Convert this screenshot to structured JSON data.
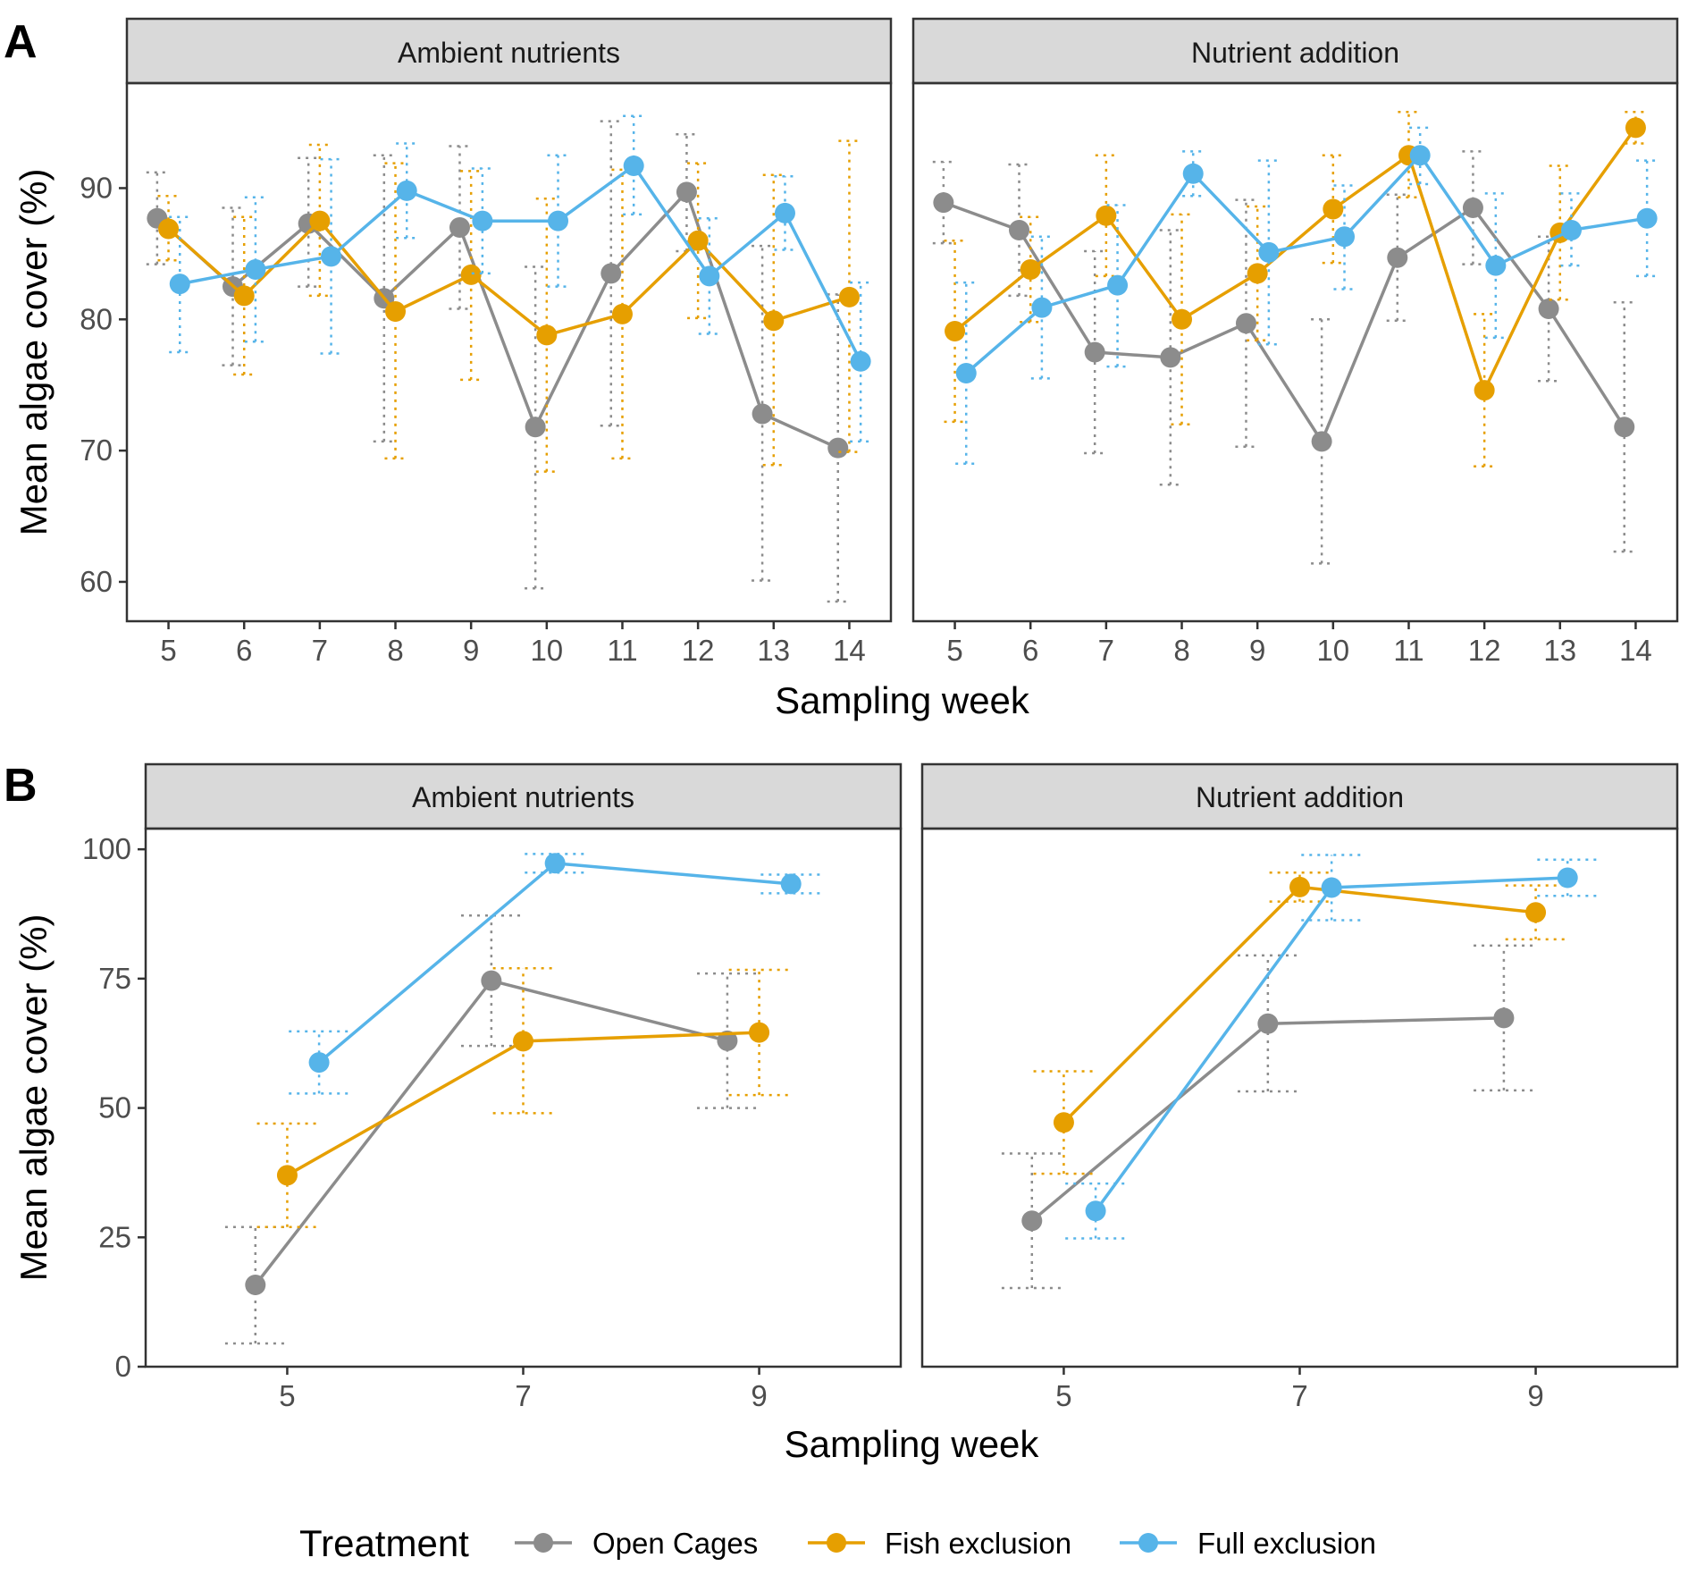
{
  "colors": {
    "Open Cages": "#8c8c8c",
    "Fish exclusion": "#e69f00",
    "Full exclusion": "#56b4e9",
    "strip_fill": "#d9d9d9",
    "panel_border": "#333333"
  },
  "legend": {
    "title": "Treatment",
    "placement": "bottom",
    "items": [
      "Open Cages",
      "Fish exclusion",
      "Full exclusion"
    ]
  },
  "chart_data": [
    {
      "tag": "A",
      "type": "line",
      "xlabel": "Sampling week",
      "ylabel": "Mean algae cover (%)",
      "x": [
        5,
        6,
        7,
        8,
        9,
        10,
        11,
        12,
        13,
        14
      ],
      "xlim": [
        4.45,
        14.55
      ],
      "ylim": [
        57,
        98
      ],
      "yticks": [
        60,
        70,
        80,
        90
      ],
      "dodge": 0.15,
      "grid": false,
      "error_bars": "dotted",
      "facets": [
        {
          "label": "Ambient nutrients",
          "series": [
            {
              "name": "Open Cages",
              "values": [
                87.7,
                82.5,
                87.3,
                81.6,
                87.0,
                71.8,
                83.5,
                89.7,
                72.8,
                70.2
              ],
              "lower": [
                84.2,
                76.5,
                82.5,
                70.7,
                80.8,
                59.5,
                71.9,
                85.2,
                60.1,
                58.5
              ],
              "upper": [
                91.2,
                88.5,
                92.3,
                92.5,
                93.2,
                84.0,
                95.1,
                94.1,
                85.6,
                81.9
              ]
            },
            {
              "name": "Fish exclusion",
              "values": [
                86.9,
                81.8,
                87.5,
                80.6,
                83.4,
                78.8,
                80.4,
                86.0,
                79.9,
                81.7
              ],
              "lower": [
                84.5,
                75.8,
                81.8,
                69.4,
                75.4,
                68.4,
                69.4,
                80.1,
                68.9,
                69.9
              ],
              "upper": [
                89.4,
                87.8,
                93.3,
                91.9,
                91.3,
                89.2,
                91.4,
                91.9,
                91.0,
                93.6
              ]
            },
            {
              "name": "Full exclusion",
              "values": [
                82.7,
                83.8,
                84.8,
                89.8,
                87.5,
                87.5,
                91.7,
                83.3,
                88.1,
                76.8
              ],
              "lower": [
                77.5,
                78.3,
                77.4,
                86.2,
                83.5,
                82.5,
                88.0,
                78.9,
                85.3,
                70.7
              ],
              "upper": [
                87.8,
                89.3,
                92.2,
                93.4,
                91.5,
                92.5,
                95.5,
                87.7,
                90.9,
                82.8
              ]
            }
          ]
        },
        {
          "label": "Nutrient addition",
          "series": [
            {
              "name": "Open Cages",
              "values": [
                88.9,
                86.8,
                77.5,
                77.1,
                79.7,
                70.7,
                84.7,
                88.5,
                80.8,
                71.8
              ],
              "lower": [
                85.8,
                81.8,
                69.8,
                67.4,
                70.3,
                61.4,
                79.9,
                84.2,
                75.3,
                62.3
              ],
              "upper": [
                92.0,
                91.8,
                85.2,
                86.8,
                89.1,
                80.0,
                89.5,
                92.8,
                86.3,
                81.3
              ]
            },
            {
              "name": "Fish exclusion",
              "values": [
                79.1,
                83.8,
                87.9,
                80.0,
                83.5,
                88.4,
                92.5,
                74.6,
                86.6,
                94.6
              ],
              "lower": [
                72.2,
                79.8,
                83.3,
                72.0,
                78.4,
                84.3,
                89.3,
                68.8,
                81.5,
                93.4
              ],
              "upper": [
                86.0,
                87.8,
                92.5,
                88.0,
                88.6,
                92.5,
                95.8,
                80.4,
                91.7,
                95.8
              ]
            },
            {
              "name": "Full exclusion",
              "values": [
                75.9,
                80.9,
                82.6,
                91.1,
                85.1,
                86.3,
                92.5,
                84.1,
                86.8,
                87.7
              ],
              "lower": [
                69.0,
                75.5,
                76.4,
                89.4,
                78.1,
                82.3,
                90.3,
                78.6,
                84.1,
                83.3
              ],
              "upper": [
                82.8,
                86.3,
                88.7,
                92.8,
                92.1,
                90.2,
                94.6,
                89.6,
                89.6,
                92.1
              ]
            }
          ]
        }
      ]
    },
    {
      "tag": "B",
      "type": "line",
      "xlabel": "Sampling week",
      "ylabel": "Mean algae cover (%)",
      "x": [
        5,
        7,
        9
      ],
      "xlim": [
        3.8,
        10.2
      ],
      "ylim": [
        0,
        104
      ],
      "yticks": [
        0,
        25,
        50,
        75,
        100
      ],
      "dodge": 0.27,
      "grid": false,
      "error_bars": "dotted",
      "facets": [
        {
          "label": "Ambient nutrients",
          "series": [
            {
              "name": "Open Cages",
              "values": [
                15.8,
                74.6,
                63.0
              ],
              "lower": [
                4.5,
                62.0,
                50.0
              ],
              "upper": [
                27.0,
                87.2,
                76.0
              ]
            },
            {
              "name": "Fish exclusion",
              "values": [
                37.0,
                62.9,
                64.6
              ],
              "lower": [
                27.0,
                49.0,
                52.5
              ],
              "upper": [
                47.0,
                77.0,
                76.7
              ]
            },
            {
              "name": "Full exclusion",
              "values": [
                58.8,
                97.3,
                93.3
              ],
              "lower": [
                52.8,
                95.5,
                91.5
              ],
              "upper": [
                64.8,
                99.1,
                95.1
              ]
            }
          ]
        },
        {
          "label": "Nutrient addition",
          "series": [
            {
              "name": "Open Cages",
              "values": [
                28.2,
                66.3,
                67.4
              ],
              "lower": [
                15.2,
                53.2,
                53.4
              ],
              "upper": [
                41.2,
                79.5,
                81.4
              ]
            },
            {
              "name": "Fish exclusion",
              "values": [
                47.2,
                92.7,
                87.8
              ],
              "lower": [
                37.3,
                89.9,
                82.6
              ],
              "upper": [
                57.1,
                95.5,
                93.0
              ]
            },
            {
              "name": "Full exclusion",
              "values": [
                30.1,
                92.6,
                94.5
              ],
              "lower": [
                24.8,
                86.3,
                91.0
              ],
              "upper": [
                35.4,
                98.9,
                98.0
              ]
            }
          ]
        }
      ]
    }
  ]
}
